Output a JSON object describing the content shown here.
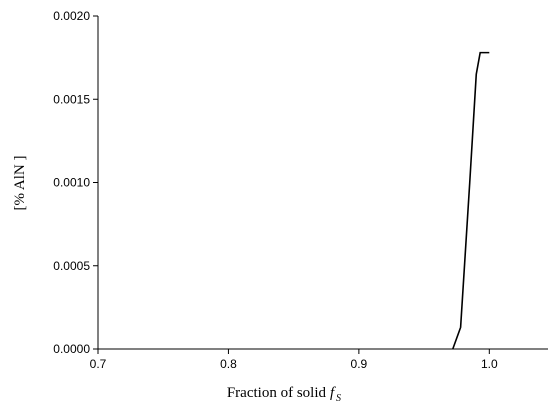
{
  "chart_data": {
    "type": "line",
    "ylabel": "[% AlN ]",
    "xlabel": "Fraction of solid",
    "xlabel_symbol": "f",
    "xlabel_subscript": "S",
    "x": [
      0.972,
      0.978,
      0.985,
      0.99,
      0.993,
      1.0
    ],
    "series": [
      {
        "color": "#000000",
        "values": [
          0,
          0.00013,
          0.001,
          0.00165,
          0.00178,
          0.00178
        ]
      }
    ],
    "xlim": [
      0.7,
      1.045
    ],
    "ylim": [
      0,
      0.002
    ],
    "xticks": [
      0.7,
      0.8,
      0.9,
      {
        "value": 1,
        "label": "1.0"
      }
    ],
    "yticks": [
      {
        "value": 0,
        "label": "0.0000"
      },
      {
        "value": 0.0005,
        "label": "0.0005"
      },
      {
        "value": 0.001,
        "label": "0.0010"
      },
      {
        "value": 0.0015,
        "label": "0.0015"
      },
      {
        "value": 0.002,
        "label": "0.0020"
      }
    ]
  }
}
